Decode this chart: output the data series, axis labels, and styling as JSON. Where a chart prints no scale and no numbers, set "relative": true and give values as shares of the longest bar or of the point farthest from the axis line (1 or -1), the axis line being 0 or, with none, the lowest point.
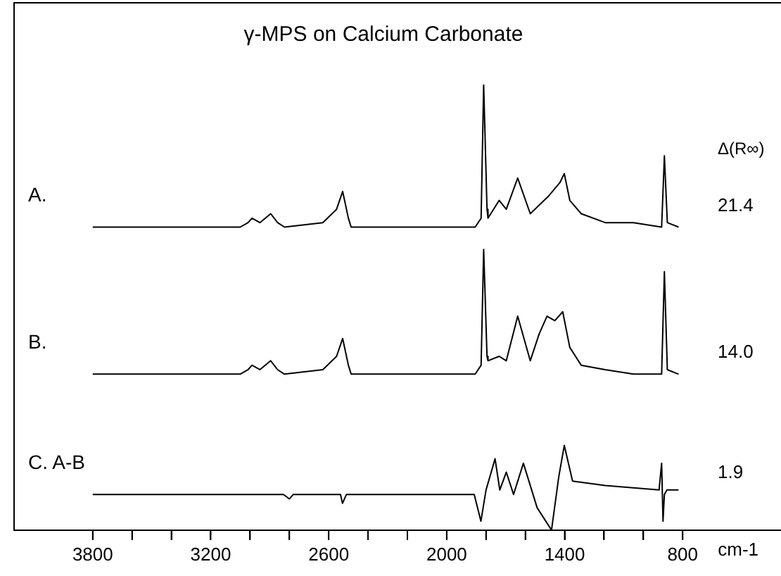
{
  "chart_data": {
    "type": "line",
    "title": "γ-MPS on Calcium Carbonate",
    "xlabel": "cm-1",
    "relative": true,
    "legend": false,
    "grid": false,
    "marker": "none",
    "line_style": "solid",
    "xlim": [
      4200,
      300
    ],
    "xticks": [
      3800,
      {
        "value": 3600,
        "label": null
      },
      {
        "value": 3400,
        "label": null
      },
      3200,
      {
        "value": 3000,
        "label": null
      },
      {
        "value": 2800,
        "label": null
      },
      2600,
      {
        "value": 2400,
        "label": null
      },
      {
        "value": 2200,
        "label": null
      },
      2000,
      {
        "value": 1800,
        "label": null
      },
      {
        "value": 1600,
        "label": null
      },
      1400,
      {
        "value": 1200,
        "label": null
      },
      {
        "value": 1000,
        "label": null
      },
      800
    ],
    "series": [
      {
        "name": "A.",
        "color": "#000000",
        "x": [
          3800,
          3050,
          3010,
          2990,
          2950,
          2895,
          2860,
          2825,
          2630,
          2560,
          2529,
          2500,
          2486,
          1855,
          1825,
          1812,
          1795,
          1790,
          1733,
          1697,
          1639,
          1575,
          1481,
          1424,
          1402,
          1374,
          1316,
          1194,
          1050,
          907,
          893,
          878,
          821
        ],
        "values": [
          0.68,
          0.68,
          0.69,
          0.7,
          0.69,
          0.71,
          0.69,
          0.68,
          0.69,
          0.72,
          0.76,
          0.7,
          0.68,
          0.68,
          0.7,
          1.0,
          0.72,
          0.7,
          0.74,
          0.72,
          0.79,
          0.71,
          0.75,
          0.78,
          0.8,
          0.74,
          0.71,
          0.69,
          0.69,
          0.68,
          0.84,
          0.69,
          0.68
        ]
      },
      {
        "name": "B.",
        "color": "#000000",
        "x": [
          3800,
          3050,
          3010,
          2990,
          2950,
          2895,
          2860,
          2825,
          2630,
          2560,
          2529,
          2500,
          2486,
          1855,
          1825,
          1812,
          1795,
          1790,
          1733,
          1697,
          1639,
          1575,
          1530,
          1490,
          1450,
          1410,
          1374,
          1316,
          1194,
          1050,
          907,
          893,
          878,
          821
        ],
        "values": [
          0.35,
          0.35,
          0.36,
          0.37,
          0.36,
          0.38,
          0.36,
          0.35,
          0.36,
          0.39,
          0.43,
          0.37,
          0.35,
          0.35,
          0.37,
          0.63,
          0.39,
          0.38,
          0.39,
          0.38,
          0.48,
          0.38,
          0.44,
          0.48,
          0.47,
          0.49,
          0.41,
          0.37,
          0.36,
          0.35,
          0.35,
          0.58,
          0.36,
          0.35
        ]
      },
      {
        "name": "C. A-B",
        "color": "#000000",
        "x": [
          3800,
          2830,
          2800,
          2780,
          2540,
          2530,
          2510,
          1860,
          1826,
          1800,
          1754,
          1730,
          1697,
          1660,
          1610,
          1540,
          1467,
          1430,
          1402,
          1360,
          1194,
          920,
          907,
          900,
          893,
          880,
          821
        ],
        "values": [
          0.08,
          0.08,
          0.07,
          0.08,
          0.08,
          0.06,
          0.08,
          0.08,
          0.02,
          0.09,
          0.16,
          0.09,
          0.13,
          0.08,
          0.15,
          0.05,
          0.0,
          0.12,
          0.19,
          0.11,
          0.1,
          0.09,
          0.15,
          0.02,
          0.08,
          0.09,
          0.09
        ]
      }
    ],
    "annotations": [
      "Δ(R∞)",
      "21.4",
      "14.0",
      "1.9"
    ]
  }
}
